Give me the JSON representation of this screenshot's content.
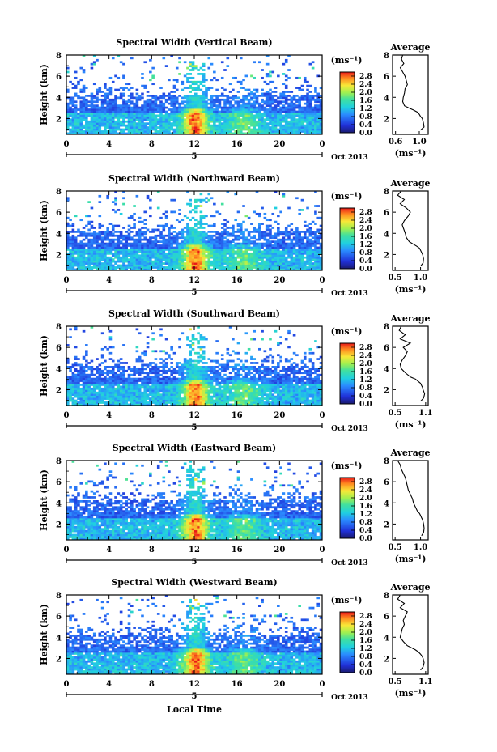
{
  "figure": {
    "y_label": "Height (km)",
    "x_label": "Local Time",
    "date_label": "Oct 2013",
    "day_label": "5",
    "avg_title": "Average",
    "unit_label": "(ms⁻¹)",
    "avg_x_label": "(ms⁻¹)"
  },
  "chart_data": [
    {
      "type": "heatmap",
      "title": "Spectral Width (Vertical Beam)",
      "xlabel": "",
      "ylabel": "Height (km)",
      "xlim": [
        0,
        24
      ],
      "ylim": [
        0.5,
        8
      ],
      "xticks": [
        "0",
        "4",
        "8",
        "12",
        "16",
        "20",
        "0"
      ],
      "yticks": [
        "2",
        "4",
        "6",
        "8"
      ],
      "colorbar": {
        "label": "(ms⁻¹)",
        "ticks": [
          "2.8",
          "2.4",
          "2.0",
          "1.6",
          "1.2",
          "0.8",
          "0.4",
          "0.0"
        ],
        "range": [
          0,
          3.0
        ]
      },
      "average_profile": {
        "title": "Average",
        "xlabel": "(ms⁻¹)",
        "xlim": [
          0.55,
          1.15
        ],
        "xticks": [
          "0.6",
          "1.0"
        ],
        "height_km": [
          8.0,
          7.6,
          7.2,
          6.8,
          6.4,
          6.0,
          5.6,
          5.2,
          4.8,
          4.4,
          4.0,
          3.6,
          3.2,
          3.0,
          2.8,
          2.6,
          2.4,
          2.2,
          2.0,
          1.6,
          1.2,
          0.9
        ],
        "width_ms": [
          0.72,
          0.7,
          0.74,
          0.68,
          0.72,
          0.76,
          0.78,
          0.8,
          0.76,
          0.75,
          0.73,
          0.72,
          0.75,
          0.82,
          0.9,
          0.97,
          1.0,
          1.02,
          1.05,
          1.07,
          1.08,
          1.02
        ]
      }
    },
    {
      "type": "heatmap",
      "title": "Spectral Width (Northward Beam)",
      "xlabel": "",
      "ylabel": "Height (km)",
      "xlim": [
        0,
        24
      ],
      "ylim": [
        0.5,
        8
      ],
      "xticks": [
        "0",
        "4",
        "8",
        "12",
        "16",
        "20",
        "0"
      ],
      "yticks": [
        "2",
        "4",
        "6",
        "8"
      ],
      "colorbar": {
        "label": "(ms⁻¹)",
        "ticks": [
          "2.8",
          "2.4",
          "2.0",
          "1.6",
          "1.2",
          "0.8",
          "0.4",
          "0.0"
        ],
        "range": [
          0,
          3.0
        ]
      },
      "average_profile": {
        "title": "Average",
        "xlabel": "(ms⁻¹)",
        "xlim": [
          0.45,
          1.15
        ],
        "xticks": [
          "0.5",
          "1.0"
        ],
        "height_km": [
          8.0,
          7.6,
          7.2,
          6.8,
          6.4,
          6.0,
          5.6,
          5.2,
          4.8,
          4.4,
          4.0,
          3.6,
          3.2,
          3.0,
          2.8,
          2.6,
          2.4,
          2.2,
          2.0,
          1.6,
          1.2,
          0.9
        ],
        "width_ms": [
          0.62,
          0.55,
          0.68,
          0.6,
          0.72,
          0.8,
          0.75,
          0.68,
          0.64,
          0.67,
          0.7,
          0.72,
          0.78,
          0.85,
          0.92,
          0.98,
          1.0,
          1.02,
          1.04,
          1.06,
          1.05,
          1.0
        ]
      }
    },
    {
      "type": "heatmap",
      "title": "Spectral Width (Southward Beam)",
      "xlabel": "",
      "ylabel": "Height (km)",
      "xlim": [
        0,
        24
      ],
      "ylim": [
        0.5,
        8
      ],
      "xticks": [
        "0",
        "4",
        "8",
        "12",
        "16",
        "20",
        "0"
      ],
      "yticks": [
        "2",
        "4",
        "6",
        "8"
      ],
      "colorbar": {
        "label": "(ms⁻¹)",
        "ticks": [
          "2.8",
          "2.4",
          "2.0",
          "1.6",
          "1.2",
          "0.8",
          "0.4",
          "0.0"
        ],
        "range": [
          0,
          3.0
        ]
      },
      "average_profile": {
        "title": "Average",
        "xlabel": "(ms⁻¹)",
        "xlim": [
          0.45,
          1.15
        ],
        "xticks": [
          "0.5",
          "1.1"
        ],
        "height_km": [
          8.0,
          7.6,
          7.2,
          6.8,
          6.4,
          6.0,
          5.6,
          5.2,
          4.8,
          4.4,
          4.0,
          3.6,
          3.2,
          3.0,
          2.8,
          2.6,
          2.4,
          2.2,
          2.0,
          1.6,
          1.2,
          0.9
        ],
        "width_ms": [
          0.62,
          0.58,
          0.7,
          0.6,
          0.8,
          0.66,
          0.74,
          0.7,
          0.64,
          0.6,
          0.62,
          0.7,
          0.8,
          0.9,
          0.95,
          1.0,
          1.02,
          1.04,
          1.05,
          1.08,
          1.06,
          1.0
        ]
      }
    },
    {
      "type": "heatmap",
      "title": "Spectral Width (Eastward Beam)",
      "xlabel": "",
      "ylabel": "Height (km)",
      "xlim": [
        0,
        24
      ],
      "ylim": [
        0.5,
        8
      ],
      "xticks": [
        "0",
        "4",
        "8",
        "12",
        "16",
        "20",
        "0"
      ],
      "yticks": [
        "2",
        "4",
        "6",
        "8"
      ],
      "colorbar": {
        "label": "(ms⁻¹)",
        "ticks": [
          "2.8",
          "2.4",
          "2.0",
          "1.6",
          "1.2",
          "0.8",
          "0.4",
          "0.0"
        ],
        "range": [
          0,
          3.0
        ]
      },
      "average_profile": {
        "title": "Average",
        "xlabel": "(ms⁻¹)",
        "xlim": [
          0.45,
          1.15
        ],
        "xticks": [
          "0.5",
          "1.0"
        ],
        "height_km": [
          8.0,
          7.6,
          7.2,
          6.8,
          6.4,
          6.0,
          5.6,
          5.2,
          4.8,
          4.4,
          4.0,
          3.6,
          3.2,
          3.0,
          2.8,
          2.6,
          2.4,
          2.2,
          2.0,
          1.6,
          1.2,
          0.9
        ],
        "width_ms": [
          0.55,
          0.6,
          0.62,
          0.66,
          0.7,
          0.72,
          0.74,
          0.76,
          0.8,
          0.84,
          0.86,
          0.9,
          0.94,
          0.98,
          1.0,
          1.02,
          1.04,
          1.05,
          1.06,
          1.07,
          1.06,
          1.02
        ]
      }
    },
    {
      "type": "heatmap",
      "title": "Spectral Width (Westward Beam)",
      "xlabel": "Local Time",
      "ylabel": "Height (km)",
      "xlim": [
        0,
        24
      ],
      "ylim": [
        0.5,
        8
      ],
      "xticks": [
        "0",
        "4",
        "8",
        "12",
        "16",
        "20",
        "0"
      ],
      "yticks": [
        "2",
        "4",
        "6",
        "8"
      ],
      "colorbar": {
        "label": "(ms⁻¹)",
        "ticks": [
          "2.8",
          "2.4",
          "2.0",
          "1.6",
          "1.2",
          "0.8",
          "0.4",
          "0.0"
        ],
        "range": [
          0,
          3.0
        ]
      },
      "average_profile": {
        "title": "Average",
        "xlabel": "(ms⁻¹)",
        "xlim": [
          0.45,
          1.15
        ],
        "xticks": [
          "0.5",
          "1.1"
        ],
        "height_km": [
          8.0,
          7.6,
          7.2,
          6.8,
          6.4,
          6.0,
          5.6,
          5.2,
          4.8,
          4.4,
          4.0,
          3.6,
          3.2,
          3.0,
          2.8,
          2.6,
          2.4,
          2.2,
          2.0,
          1.6,
          1.2,
          0.9
        ],
        "width_ms": [
          0.6,
          0.55,
          0.68,
          0.6,
          0.74,
          0.7,
          0.66,
          0.68,
          0.64,
          0.62,
          0.6,
          0.66,
          0.74,
          0.82,
          0.9,
          0.96,
          1.0,
          1.03,
          1.05,
          1.07,
          1.05,
          1.0
        ]
      }
    }
  ]
}
